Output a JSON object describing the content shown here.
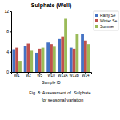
{
  "chart_data": {
    "type": "bar",
    "title": "Sulphate (Well)",
    "xlabel": "Sample ID",
    "categories": [
      "W1",
      "W2",
      "W5",
      "W10",
      "W13A",
      "W13B",
      "W14"
    ],
    "series": [
      {
        "name": "Rainy Se",
        "color": "#4472C4",
        "values": [
          4.5,
          5.2,
          3.8,
          5.8,
          6.5,
          4.8,
          7.5
        ]
      },
      {
        "name": "Winter Se",
        "color": "#C0504D",
        "values": [
          4.8,
          5.6,
          4.6,
          5.5,
          7.0,
          4.6,
          6.2
        ]
      },
      {
        "name": "Summer",
        "color": "#9BBB59",
        "values": [
          2.2,
          4.2,
          4.8,
          5.0,
          10.5,
          7.5,
          5.5
        ]
      }
    ],
    "ylim": [
      0,
      12
    ],
    "yticks": [
      0,
      4,
      8,
      12
    ],
    "grid": false,
    "legend": "right",
    "annotations": [
      "Fig. 8: Assessment of  Sulphate",
      "    for seasonal variation"
    ]
  }
}
